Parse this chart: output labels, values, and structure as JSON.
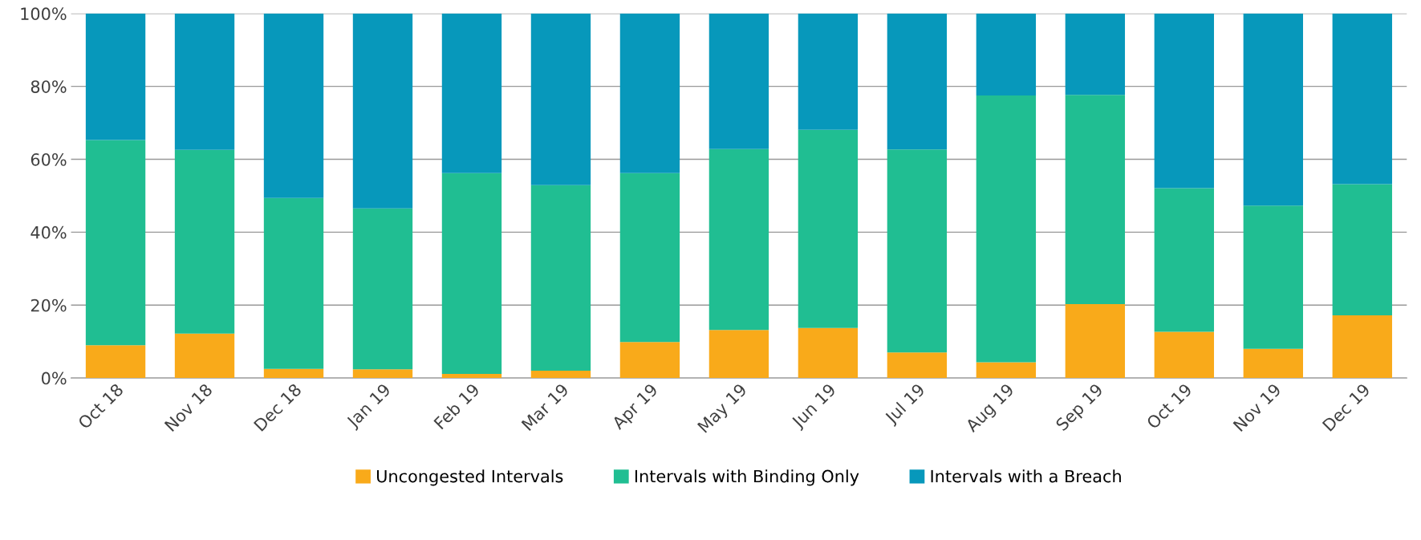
{
  "chart_data": {
    "type": "bar",
    "stacked": true,
    "categories": [
      "Oct 18",
      "Nov 18",
      "Dec 18",
      "Jan 19",
      "Feb 19",
      "Mar 19",
      "Apr 19",
      "May 19",
      "Jun 19",
      "Jul 19",
      "Aug 19",
      "Sep 19",
      "Oct 19",
      "Nov 19",
      "Dec 19"
    ],
    "series": [
      {
        "name": "Uncongested Intervals",
        "color": "#f9aa1a",
        "values": [
          9.0,
          12.2,
          2.5,
          2.4,
          1.1,
          2.0,
          9.9,
          13.2,
          13.7,
          7.0,
          4.3,
          20.3,
          12.7,
          8.0,
          17.2
        ]
      },
      {
        "name": "Intervals with Binding Only",
        "color": "#20be92",
        "values": [
          56.3,
          50.4,
          46.9,
          44.1,
          55.1,
          50.9,
          46.3,
          49.6,
          54.4,
          55.7,
          73.2,
          57.4,
          39.4,
          39.3,
          36.0
        ]
      },
      {
        "name": "Intervals with a Breach",
        "color": "#0798bb",
        "values": [
          34.7,
          37.4,
          50.6,
          53.5,
          43.8,
          47.1,
          43.8,
          37.2,
          31.9,
          37.3,
          22.5,
          22.3,
          47.9,
          52.7,
          46.8
        ]
      }
    ],
    "ylim": [
      0,
      100
    ],
    "yticks": [
      {
        "value": 0,
        "label": "0%"
      },
      {
        "value": 20,
        "label": "20%"
      },
      {
        "value": 40,
        "label": "40%"
      },
      {
        "value": 60,
        "label": "60%"
      },
      {
        "value": 80,
        "label": "80%"
      },
      {
        "value": 100,
        "label": "100%"
      }
    ],
    "grid": "y",
    "legend": "bottom"
  }
}
